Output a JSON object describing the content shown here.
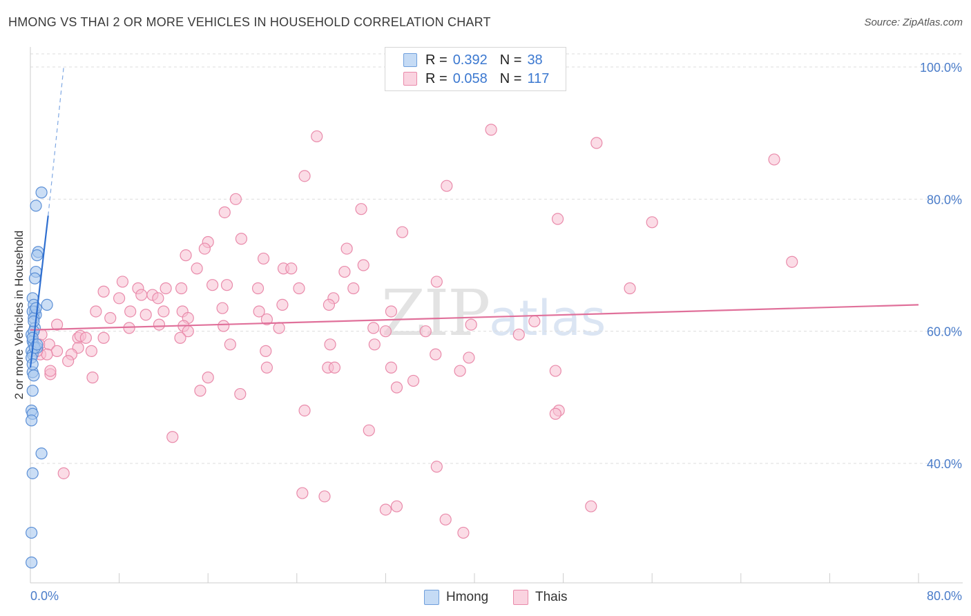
{
  "title": "HMONG VS THAI 2 OR MORE VEHICLES IN HOUSEHOLD CORRELATION CHART",
  "source": "Source: ZipAtlas.com",
  "watermark": {
    "zip": "ZIP",
    "atlas": "atlas"
  },
  "legend": {
    "hmong": {
      "r_label": "R =",
      "r_value": "0.392",
      "n_label": "N =",
      "n_value": "38",
      "color": "#a9c8ef",
      "stroke": "#6f9fdc"
    },
    "thai": {
      "r_label": "R =",
      "r_value": "0.058",
      "n_label": "N =",
      "n_value": "117",
      "color": "#f7bfd1",
      "stroke": "#e98aaa"
    }
  },
  "bottom_legend": {
    "hmong": "Hmong",
    "thai": "Thais"
  },
  "chart_data": {
    "type": "scatter",
    "title": "HMONG VS THAI 2 OR MORE VEHICLES IN HOUSEHOLD CORRELATION CHART",
    "xlabel": "",
    "ylabel": "2 or more Vehicles in Household",
    "xlim": [
      0,
      80
    ],
    "ylim": [
      20,
      104
    ],
    "x_tick_labels": [
      "0.0%",
      "80.0%"
    ],
    "y_ticks": [
      40,
      60,
      80,
      100
    ],
    "y_tick_labels": [
      "40.0%",
      "60.0%",
      "80.0%",
      "100.0%"
    ],
    "grid": true,
    "series": [
      {
        "name": "Hmong",
        "color": "#a9c8ef",
        "stroke": "#5b8fd6",
        "trend": {
          "x": [
            0.0,
            1.6
          ],
          "y": [
            54.5,
            77.5
          ],
          "color": "#2f6fd0",
          "extension": {
            "x": [
              1.6,
              3.0
            ],
            "y": [
              77.5,
              100.0
            ]
          }
        },
        "points": [
          [
            1.0,
            81.0
          ],
          [
            0.5,
            79.0
          ],
          [
            0.7,
            72.0
          ],
          [
            0.6,
            71.5
          ],
          [
            0.5,
            69.0
          ],
          [
            0.4,
            68.0
          ],
          [
            1.5,
            64.0
          ],
          [
            0.2,
            65.0
          ],
          [
            0.3,
            64.0
          ],
          [
            0.4,
            63.0
          ],
          [
            0.5,
            62.5
          ],
          [
            0.2,
            63.0
          ],
          [
            0.3,
            62.0
          ],
          [
            0.4,
            60.5
          ],
          [
            0.1,
            59.5
          ],
          [
            0.2,
            58.5
          ],
          [
            0.3,
            58.0
          ],
          [
            0.6,
            57.5
          ],
          [
            0.1,
            57.0
          ],
          [
            0.2,
            56.5
          ],
          [
            0.1,
            56.0
          ],
          [
            0.2,
            53.8
          ],
          [
            0.3,
            53.3
          ],
          [
            0.2,
            51.0
          ],
          [
            0.1,
            48.0
          ],
          [
            0.2,
            47.5
          ],
          [
            0.1,
            46.5
          ],
          [
            1.0,
            41.5
          ],
          [
            0.2,
            38.5
          ],
          [
            0.1,
            29.5
          ],
          [
            0.1,
            25.0
          ],
          [
            0.3,
            60.0
          ],
          [
            0.2,
            59.0
          ],
          [
            0.5,
            63.5
          ],
          [
            0.4,
            57.5
          ],
          [
            0.2,
            55.0
          ],
          [
            0.6,
            58.0
          ],
          [
            0.3,
            61.5
          ]
        ]
      },
      {
        "name": "Thais",
        "color": "#f7bfd1",
        "stroke": "#e98aaa",
        "trend": {
          "x": [
            0.0,
            80.0
          ],
          "y": [
            60.2,
            64.0
          ],
          "color": "#e0709a"
        },
        "points": [
          [
            25.8,
            89.5
          ],
          [
            41.5,
            90.5
          ],
          [
            51.0,
            88.5
          ],
          [
            67.0,
            86.0
          ],
          [
            24.7,
            83.5
          ],
          [
            37.5,
            82.0
          ],
          [
            18.5,
            80.0
          ],
          [
            17.5,
            78.0
          ],
          [
            29.8,
            78.5
          ],
          [
            47.5,
            77.0
          ],
          [
            33.5,
            75.0
          ],
          [
            56.0,
            76.5
          ],
          [
            16.0,
            73.5
          ],
          [
            19.0,
            74.0
          ],
          [
            15.7,
            72.5
          ],
          [
            28.5,
            72.5
          ],
          [
            14.0,
            71.5
          ],
          [
            21.0,
            71.0
          ],
          [
            30.0,
            70.0
          ],
          [
            22.8,
            69.5
          ],
          [
            15.0,
            69.5
          ],
          [
            23.5,
            69.5
          ],
          [
            28.3,
            69.0
          ],
          [
            68.6,
            70.5
          ],
          [
            8.3,
            67.5
          ],
          [
            16.4,
            67.0
          ],
          [
            17.7,
            67.0
          ],
          [
            36.6,
            67.5
          ],
          [
            20.5,
            66.5
          ],
          [
            24.2,
            66.5
          ],
          [
            9.7,
            66.5
          ],
          [
            12.2,
            66.5
          ],
          [
            13.6,
            66.5
          ],
          [
            29.1,
            66.5
          ],
          [
            54.0,
            66.5
          ],
          [
            6.6,
            66.0
          ],
          [
            10.0,
            65.5
          ],
          [
            11.0,
            65.5
          ],
          [
            8.0,
            65.0
          ],
          [
            11.5,
            65.0
          ],
          [
            27.3,
            65.0
          ],
          [
            22.7,
            64.0
          ],
          [
            26.9,
            64.0
          ],
          [
            12.0,
            63.0
          ],
          [
            5.9,
            63.0
          ],
          [
            9.0,
            63.0
          ],
          [
            13.7,
            63.0
          ],
          [
            17.3,
            63.5
          ],
          [
            20.6,
            63.0
          ],
          [
            32.5,
            63.0
          ],
          [
            7.2,
            62.0
          ],
          [
            10.4,
            62.5
          ],
          [
            14.2,
            62.0
          ],
          [
            21.3,
            61.8
          ],
          [
            2.4,
            61.0
          ],
          [
            11.6,
            61.0
          ],
          [
            13.8,
            60.8
          ],
          [
            17.4,
            60.8
          ],
          [
            30.9,
            60.5
          ],
          [
            39.7,
            61.0
          ],
          [
            45.4,
            61.5
          ],
          [
            8.9,
            60.5
          ],
          [
            14.2,
            60.0
          ],
          [
            22.4,
            60.5
          ],
          [
            32.0,
            60.0
          ],
          [
            35.6,
            60.0
          ],
          [
            44.0,
            59.5
          ],
          [
            1.0,
            59.5
          ],
          [
            4.3,
            59.0
          ],
          [
            4.5,
            59.3
          ],
          [
            5.0,
            59.0
          ],
          [
            6.6,
            59.0
          ],
          [
            13.5,
            59.0
          ],
          [
            0.8,
            58.0
          ],
          [
            1.7,
            58.0
          ],
          [
            4.3,
            57.5
          ],
          [
            18.0,
            58.0
          ],
          [
            27.0,
            58.0
          ],
          [
            31.0,
            58.0
          ],
          [
            2.4,
            57.0
          ],
          [
            5.5,
            57.0
          ],
          [
            21.2,
            57.0
          ],
          [
            0.9,
            56.5
          ],
          [
            1.5,
            56.5
          ],
          [
            3.7,
            56.5
          ],
          [
            36.5,
            56.5
          ],
          [
            39.5,
            56.0
          ],
          [
            3.4,
            55.5
          ],
          [
            26.8,
            54.5
          ],
          [
            27.4,
            54.5
          ],
          [
            32.5,
            54.5
          ],
          [
            38.7,
            54.0
          ],
          [
            47.3,
            54.0
          ],
          [
            21.3,
            54.5
          ],
          [
            5.6,
            53.0
          ],
          [
            16.0,
            53.0
          ],
          [
            1.8,
            53.5
          ],
          [
            33.0,
            51.5
          ],
          [
            34.5,
            52.5
          ],
          [
            15.3,
            51.0
          ],
          [
            18.9,
            50.5
          ],
          [
            24.7,
            48.0
          ],
          [
            47.6,
            48.0
          ],
          [
            47.3,
            47.5
          ],
          [
            30.5,
            45.0
          ],
          [
            12.8,
            44.0
          ],
          [
            36.6,
            39.5
          ],
          [
            3.0,
            38.5
          ],
          [
            24.5,
            35.5
          ],
          [
            26.5,
            35.0
          ],
          [
            32.0,
            33.0
          ],
          [
            33.0,
            33.5
          ],
          [
            50.5,
            33.5
          ],
          [
            37.4,
            31.5
          ],
          [
            39.0,
            29.5
          ],
          [
            1.8,
            54.0
          ],
          [
            0.6,
            57.0
          ]
        ]
      }
    ]
  }
}
